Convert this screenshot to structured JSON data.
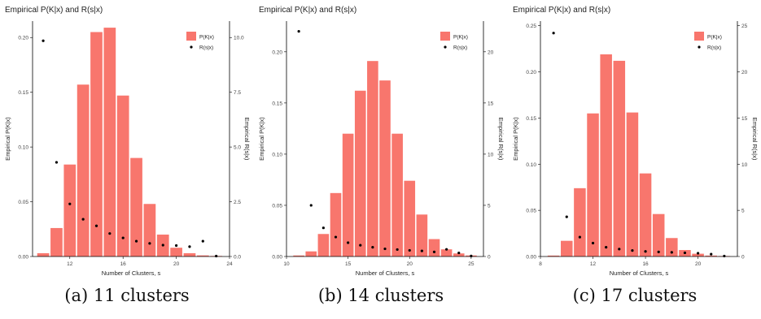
{
  "colors": {
    "bar": "#F8766D",
    "point": "#000000",
    "axis": "#000000",
    "text": "#222222"
  },
  "chart_data": [
    {
      "type": "bar",
      "title": "Empirical P(K|x) and R(s|x)",
      "caption": "(a) 11 clusters",
      "xlabel": "Number of Clusters, s",
      "ylabel": "Empirical P(K|x)",
      "ylabel_right": "Empirical R(s|x)",
      "legend": {
        "placement": "top-right",
        "bar_label": "P(K|x)",
        "point_label": "R(s|x)"
      },
      "grid": false,
      "xlim": [
        9.2,
        24
      ],
      "ylim": [
        0,
        0.215
      ],
      "y2lim": [
        0,
        10.75
      ],
      "xticks": [
        12,
        16,
        20,
        24
      ],
      "yticks": [
        0,
        0.05,
        0.1,
        0.15,
        0.2
      ],
      "yticks_labels": [
        "0.00",
        "0.05",
        "0.10",
        "0.15",
        "0.20"
      ],
      "y2ticks": [
        0,
        2.5,
        5,
        7.5,
        10
      ],
      "y2ticks_labels": [
        "0.0",
        "2.5",
        "5.0",
        "7.5",
        "10.0"
      ],
      "bars": {
        "name": "P(K|x)",
        "x": [
          10,
          11,
          12,
          13,
          14,
          15,
          16,
          17,
          18,
          19,
          20,
          21,
          22,
          23
        ],
        "values": [
          0.003,
          0.026,
          0.084,
          0.157,
          0.205,
          0.209,
          0.147,
          0.09,
          0.048,
          0.02,
          0.008,
          0.003,
          0.001,
          0.0005
        ]
      },
      "points": {
        "name": "R(s|x)",
        "x": [
          10,
          11,
          12,
          13,
          14,
          15,
          16,
          17,
          18,
          19,
          20,
          21,
          22,
          23
        ],
        "values": [
          9.85,
          4.3,
          2.4,
          1.7,
          1.4,
          1.05,
          0.85,
          0.7,
          0.6,
          0.52,
          0.5,
          0.45,
          0.7,
          0.02
        ]
      }
    },
    {
      "type": "bar",
      "title": "Empirical P(K|x) and R(s|x)",
      "caption": "(b) 14 clusters",
      "xlabel": "Number of Clusters, s",
      "ylabel": "Empirical P(K|x)",
      "ylabel_right": "Empirical R(s|x)",
      "legend": {
        "placement": "top-right",
        "bar_label": "P(K|x)",
        "point_label": "R(s|x)"
      },
      "grid": false,
      "xlim": [
        10,
        26
      ],
      "ylim": [
        0,
        0.23
      ],
      "y2lim": [
        0,
        23
      ],
      "xticks": [
        10,
        15,
        20,
        25
      ],
      "yticks": [
        0,
        0.05,
        0.1,
        0.15,
        0.2
      ],
      "yticks_labels": [
        "0.00",
        "0.05",
        "0.10",
        "0.15",
        "0.20"
      ],
      "y2ticks": [
        0,
        5,
        10,
        15,
        20
      ],
      "y2ticks_labels": [
        "0",
        "5",
        "10",
        "15",
        "20"
      ],
      "bars": {
        "name": "P(K|x)",
        "x": [
          11,
          12,
          13,
          14,
          15,
          16,
          17,
          18,
          19,
          20,
          21,
          22,
          23,
          24,
          25
        ],
        "values": [
          0.001,
          0.005,
          0.022,
          0.062,
          0.12,
          0.162,
          0.191,
          0.172,
          0.12,
          0.074,
          0.041,
          0.017,
          0.007,
          0.003,
          0.001
        ]
      },
      "points": {
        "name": "R(s|x)",
        "x": [
          11,
          12,
          13,
          14,
          15,
          16,
          17,
          18,
          19,
          20,
          21,
          22,
          23,
          24,
          25
        ],
        "values": [
          22.0,
          5.0,
          2.8,
          1.9,
          1.35,
          1.1,
          0.9,
          0.75,
          0.68,
          0.6,
          0.55,
          0.45,
          0.7,
          0.35,
          0.05
        ]
      }
    },
    {
      "type": "bar",
      "title": "Empirical P(K|x) and R(s|x)",
      "caption": "(c) 17 clusters",
      "xlabel": "Number of Clusters, s",
      "ylabel": "Empirical P(K|x)",
      "ylabel_right": "Empirical R(s|x)",
      "legend": {
        "placement": "top-right",
        "bar_label": "P(K|x)",
        "point_label": "R(s|x)"
      },
      "grid": false,
      "xlim": [
        8,
        23
      ],
      "ylim": [
        0,
        0.255
      ],
      "y2lim": [
        0,
        25.5
      ],
      "xticks": [
        8,
        12,
        16,
        20
      ],
      "yticks": [
        0,
        0.05,
        0.1,
        0.15,
        0.2,
        0.25
      ],
      "yticks_labels": [
        "0.00",
        "0.05",
        "0.10",
        "0.15",
        "0.20",
        "0.25"
      ],
      "y2ticks": [
        0,
        5,
        10,
        15,
        20,
        25
      ],
      "y2ticks_labels": [
        "0",
        "5",
        "10",
        "15",
        "20",
        "25"
      ],
      "bars": {
        "name": "P(K|x)",
        "x": [
          9,
          10,
          11,
          12,
          13,
          14,
          15,
          16,
          17,
          18,
          19,
          20,
          21,
          22
        ],
        "values": [
          0.001,
          0.017,
          0.074,
          0.155,
          0.219,
          0.212,
          0.156,
          0.09,
          0.046,
          0.02,
          0.007,
          0.003,
          0.001,
          0.0005
        ]
      },
      "points": {
        "name": "R(s|x)",
        "x": [
          9,
          10,
          11,
          12,
          13,
          14,
          15,
          16,
          17,
          18,
          19,
          20,
          21,
          22
        ],
        "values": [
          24.2,
          4.3,
          2.1,
          1.45,
          1.0,
          0.8,
          0.65,
          0.55,
          0.5,
          0.45,
          0.4,
          0.35,
          0.25,
          0.05
        ]
      }
    }
  ]
}
